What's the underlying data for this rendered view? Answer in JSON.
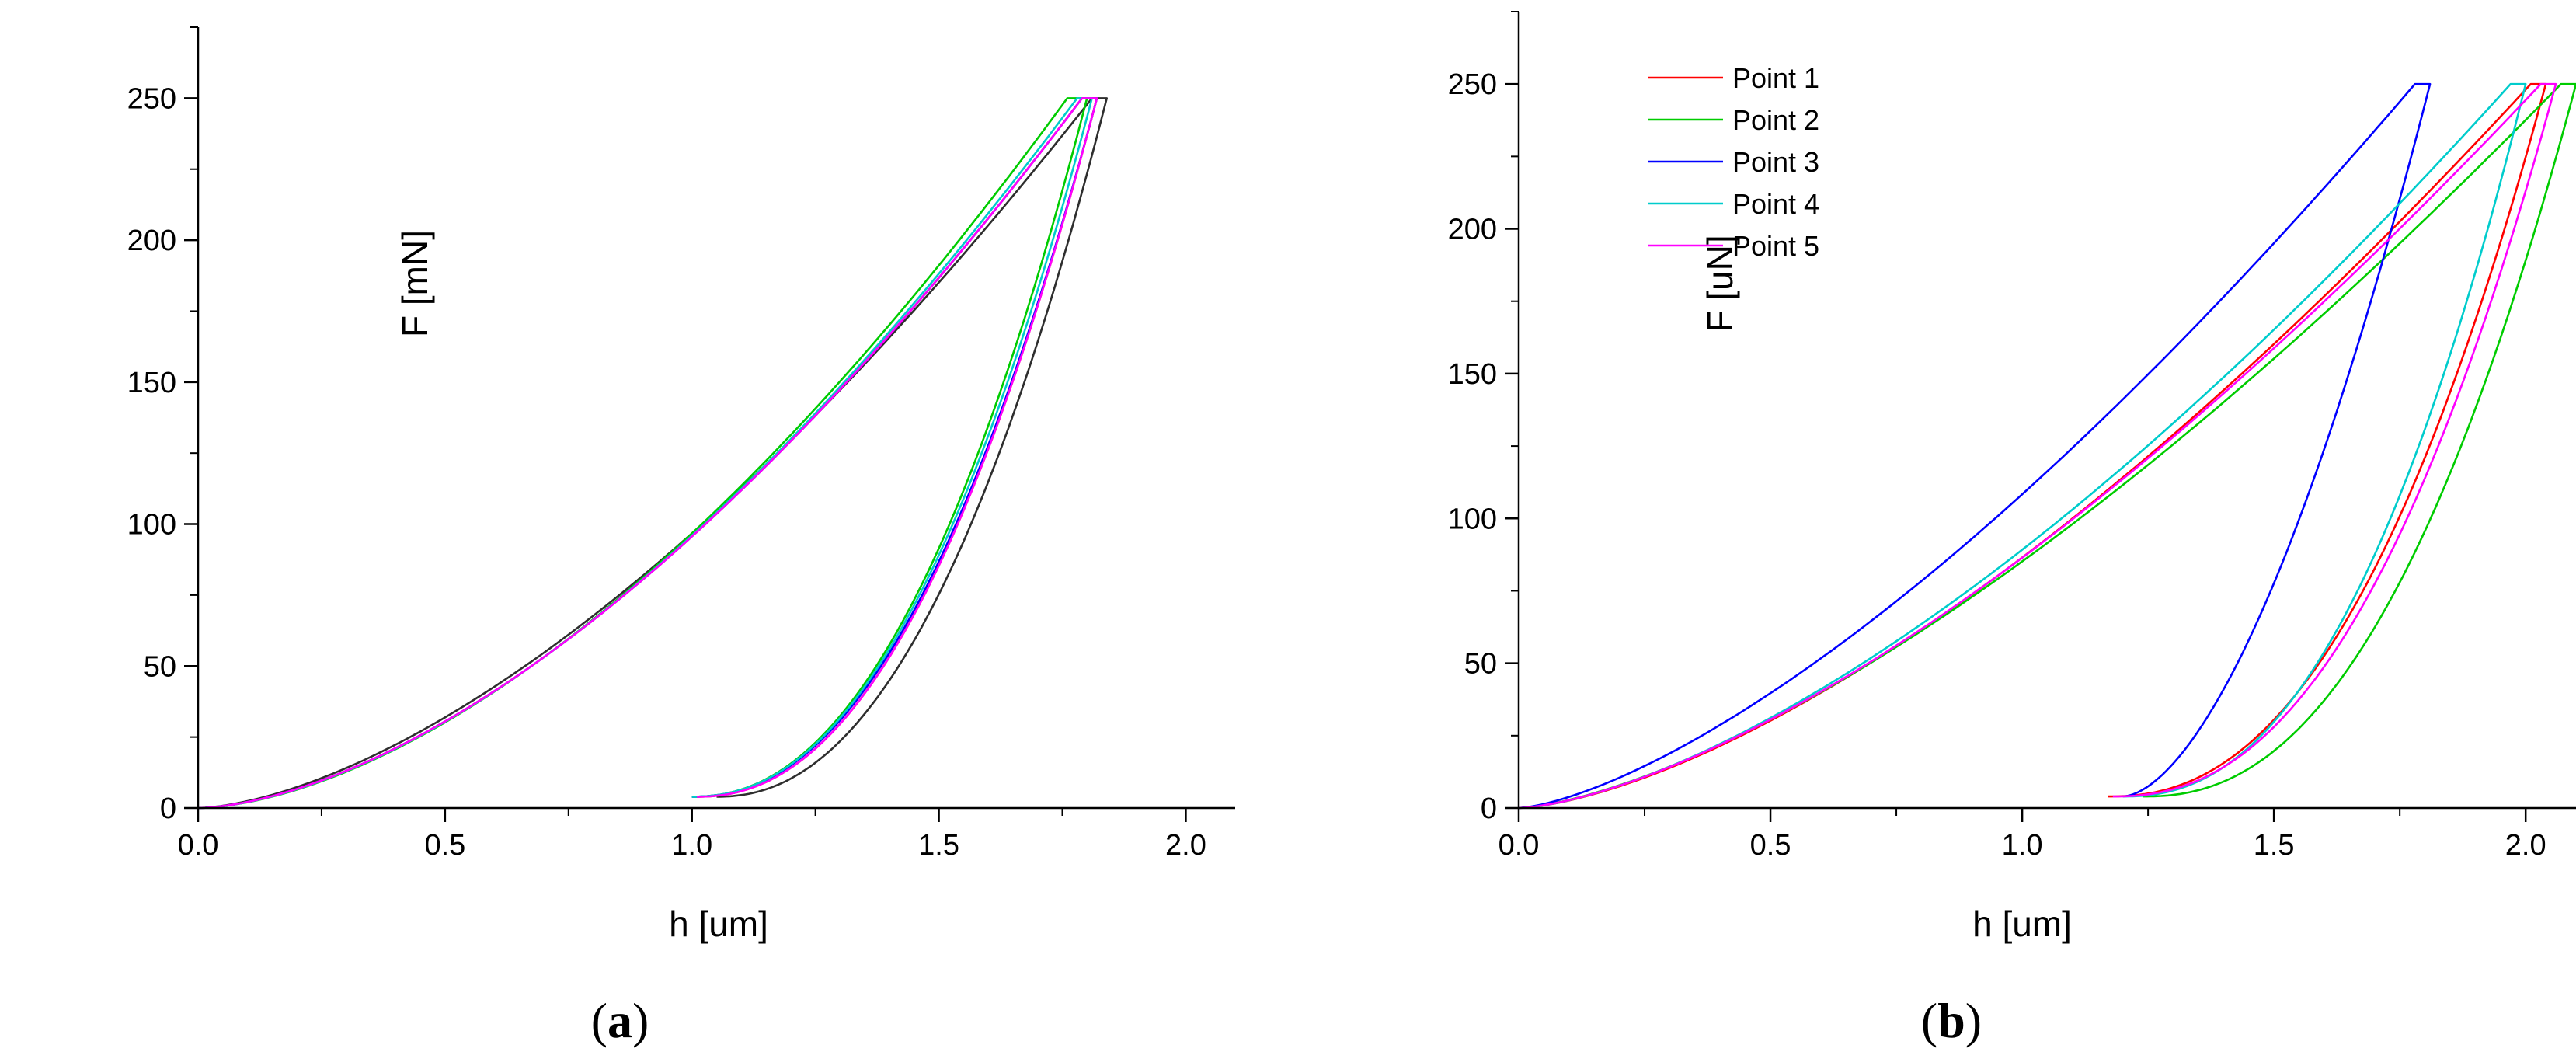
{
  "chart_data": [
    {
      "panel": "a",
      "type": "line",
      "xlabel": "h [um]",
      "ylabel": "F [mN]",
      "xlim": [
        0.0,
        2.1
      ],
      "ylim": [
        0,
        275
      ],
      "xticks": [
        "0.0",
        "0.5",
        "1.0",
        "1.5",
        "2.0"
      ],
      "yticks": [
        "0",
        "50",
        "100",
        "150",
        "200",
        "250"
      ],
      "grid": false,
      "legend": null,
      "series": [
        {
          "color": "#2e2e2e",
          "x_max": 1.84,
          "y_max": 250,
          "hold_start": 1.81,
          "unload_end": 1.05,
          "unload_end_y": 4,
          "load_exp": 1.6,
          "unload_exp": 2.2
        },
        {
          "color": "#ff0000",
          "x_max": 1.82,
          "y_max": 250,
          "hold_start": 1.79,
          "unload_end": 1.01,
          "unload_end_y": 4,
          "load_exp": 1.65,
          "unload_exp": 2.2
        },
        {
          "color": "#00cc00",
          "x_max": 1.8,
          "y_max": 250,
          "hold_start": 1.76,
          "unload_end": 1.0,
          "unload_end_y": 4,
          "load_exp": 1.68,
          "unload_exp": 2.2
        },
        {
          "color": "#0000ff",
          "x_max": 1.82,
          "y_max": 250,
          "hold_start": 1.79,
          "unload_end": 1.0,
          "unload_end_y": 4,
          "load_exp": 1.65,
          "unload_exp": 2.2
        },
        {
          "color": "#00cccc",
          "x_max": 1.81,
          "y_max": 250,
          "hold_start": 1.78,
          "unload_end": 1.0,
          "unload_end_y": 4,
          "load_exp": 1.66,
          "unload_exp": 2.2
        },
        {
          "color": "#ff00ff",
          "x_max": 1.82,
          "y_max": 250,
          "hold_start": 1.79,
          "unload_end": 1.01,
          "unload_end_y": 4,
          "load_exp": 1.65,
          "unload_exp": 2.2
        }
      ]
    },
    {
      "panel": "b",
      "type": "line",
      "xlabel": "h [um]",
      "ylabel": "F [uN]",
      "xlim": [
        0.0,
        2.1
      ],
      "ylim": [
        0,
        275
      ],
      "xticks": [
        "0.0",
        "0.5",
        "1.0",
        "1.5",
        "2.0"
      ],
      "yticks": [
        "0",
        "50",
        "100",
        "150",
        "200",
        "250"
      ],
      "grid": false,
      "legend": "top-left",
      "series": [
        {
          "name": "Point 1",
          "color": "#ff0000",
          "x_max": 2.04,
          "y_max": 250,
          "hold_start": 2.01,
          "unload_end": 1.17,
          "unload_end_y": 4,
          "load_exp": 1.52,
          "unload_exp": 2.3
        },
        {
          "name": "Point 2",
          "color": "#00cc00",
          "x_max": 2.1,
          "y_max": 250,
          "hold_start": 2.07,
          "unload_end": 1.24,
          "unload_end_y": 4,
          "load_exp": 1.48,
          "unload_exp": 2.3
        },
        {
          "name": "Point 3",
          "color": "#0000ff",
          "x_max": 1.81,
          "y_max": 250,
          "hold_start": 1.78,
          "unload_end": 1.2,
          "unload_end_y": 4,
          "load_exp": 1.45,
          "unload_exp": 1.7
        },
        {
          "name": "Point 4",
          "color": "#00cccc",
          "x_max": 2.0,
          "y_max": 250,
          "hold_start": 1.97,
          "unload_end": 1.2,
          "unload_end_y": 4,
          "load_exp": 1.52,
          "unload_exp": 2.3
        },
        {
          "name": "Point 5",
          "color": "#ff00ff",
          "x_max": 2.06,
          "y_max": 250,
          "hold_start": 2.03,
          "unload_end": 1.18,
          "unload_end_y": 4,
          "load_exp": 1.5,
          "unload_exp": 2.3
        }
      ]
    }
  ],
  "captions": {
    "a": {
      "open": "(",
      "letter": "a",
      "close": ")"
    },
    "b": {
      "open": "(",
      "letter": "b",
      "close": ")"
    }
  }
}
